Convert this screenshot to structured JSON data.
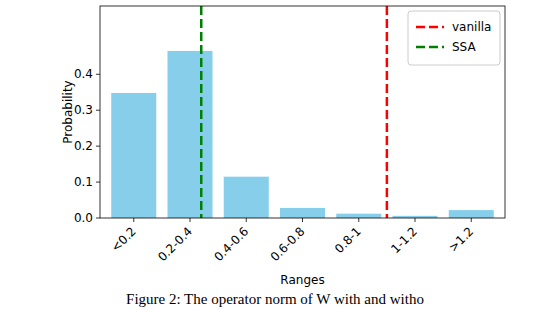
{
  "chart_data": {
    "type": "bar",
    "categories": [
      "<0.2",
      "0.2-0.4",
      "0.4-0.6",
      "0.6-0.8",
      "0.8-1",
      "1-1.2",
      ">1.2"
    ],
    "values": [
      0.348,
      0.465,
      0.115,
      0.028,
      0.012,
      0.006,
      0.022
    ],
    "color": "#87ceeb",
    "xlabel": "Ranges",
    "ylabel": "Probability",
    "xlim": [
      -0.6,
      6.6
    ],
    "ylim": [
      0,
      0.59
    ],
    "yticks": [
      {
        "value": 0,
        "label": "0.0"
      },
      {
        "value": 0.1,
        "label": "0.1"
      },
      {
        "value": 0.2,
        "label": "0.2"
      },
      {
        "value": 0.3,
        "label": "0.3"
      },
      {
        "value": 0.4,
        "label": "0.4"
      }
    ],
    "lines": [
      {
        "name": "vanilla",
        "x": 4.5,
        "color": "#ff0000",
        "line_style": "dashed"
      },
      {
        "name": "SSA",
        "x": 1.2,
        "color": "#008000",
        "line_style": "dashed"
      }
    ],
    "legend": "upper right",
    "caption": "Figure 2: The operator norm of W with and witho"
  }
}
